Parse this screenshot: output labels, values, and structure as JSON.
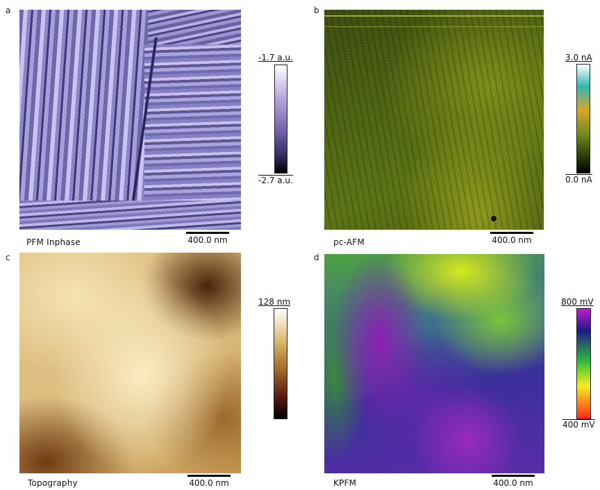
{
  "panels": [
    {
      "letter": "a",
      "caption": "PFM Inphase",
      "scalebar": "400.0 nm",
      "colorbar": {
        "max": "-1.7 a.u.",
        "min": "-2.7 a.u.",
        "colors": [
          "#ffffff",
          "#b6a8dc",
          "#7566ab",
          "#000000"
        ]
      }
    },
    {
      "letter": "b",
      "caption": "pc-AFM",
      "scalebar": "400.0 nm",
      "colorbar": {
        "max": "3.0 nA",
        "min": "0.0 nA",
        "colors": [
          "#ffffff",
          "#2fb7b3",
          "#d8a62a",
          "#6e8a1c",
          "#000000"
        ]
      }
    },
    {
      "letter": "c",
      "caption": "Topography",
      "scalebar": "400.0 nm",
      "colorbar": {
        "max": "128 nm",
        "min": "",
        "colors": [
          "#ffffff",
          "#d9b86a",
          "#a26a2a",
          "#5a1a12",
          "#000000"
        ]
      }
    },
    {
      "letter": "d",
      "caption": "KPFM",
      "scalebar": "400.0 nm",
      "colorbar": {
        "max": "800 mV",
        "min": "400 mV",
        "colors": [
          "#c21ad1",
          "#1f1a8a",
          "#2fbe3a",
          "#f3ef1f",
          "#ff2a1a"
        ]
      }
    }
  ]
}
